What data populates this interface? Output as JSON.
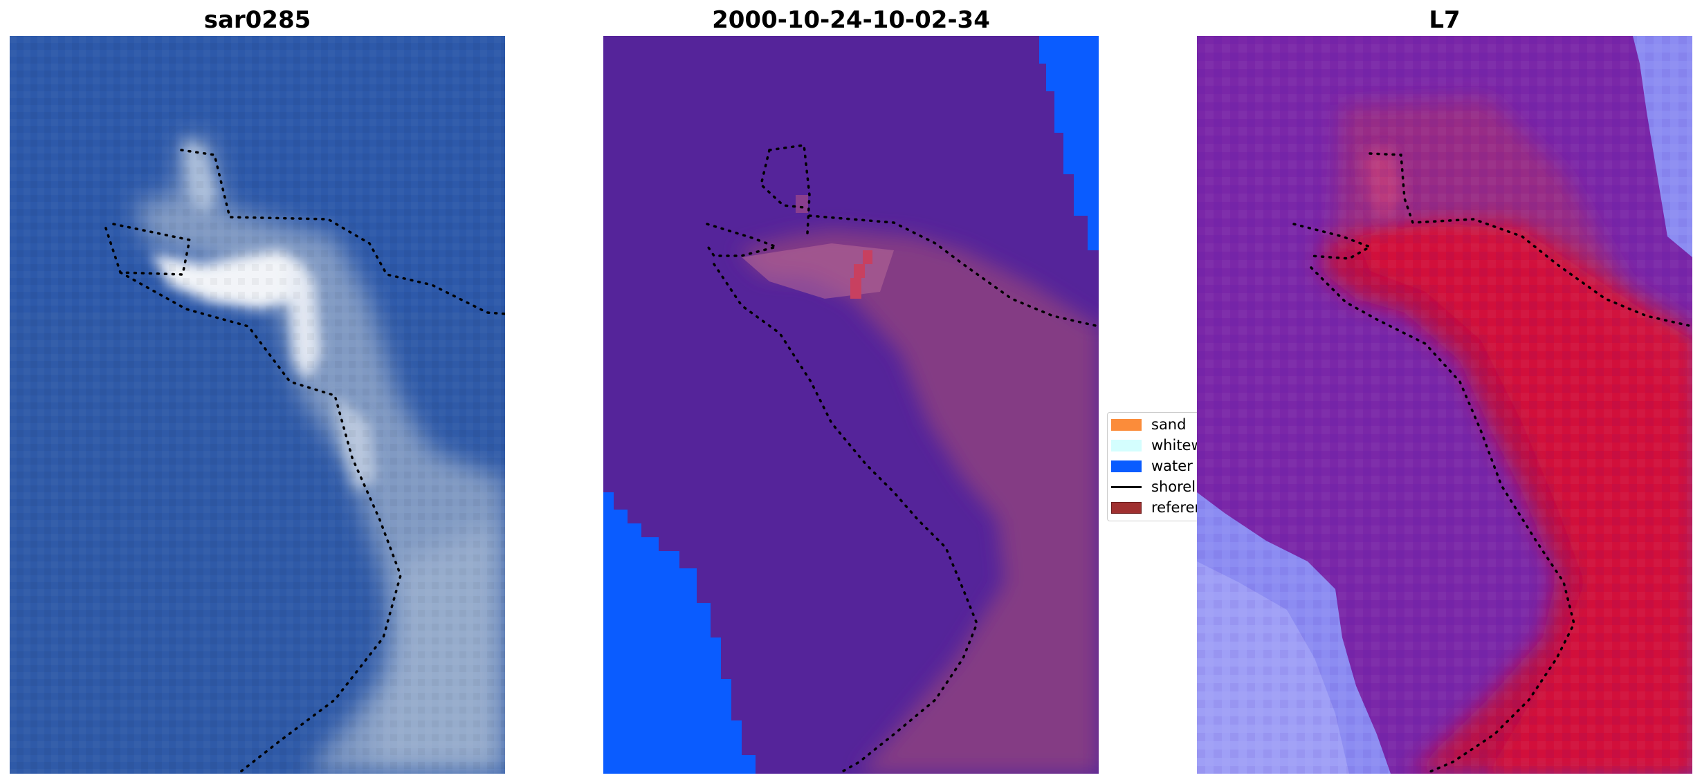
{
  "panels": [
    {
      "title": "sar0285"
    },
    {
      "title": "2000-10-24-10-02-34"
    },
    {
      "title": "L7"
    }
  ],
  "legend": {
    "items": [
      {
        "label": "sand",
        "color": "#fb8c3a"
      },
      {
        "label": "whitewater",
        "color": "#d4fefe"
      },
      {
        "label": "water",
        "color": "#0a5cff"
      },
      {
        "label": "shoreline",
        "color": "#000000"
      },
      {
        "label": "reference shoreline",
        "color": "#a03030"
      }
    ]
  },
  "colors": {
    "panel1_sea": "#2f5aa8",
    "panel1_land": "#8fa6c8",
    "panel1_bright": "#f2f4f8",
    "panel2_land_class": "#55249a",
    "panel2_water_class": "#0a5cff",
    "panel2_overlay": "#8c4080",
    "panel2_highlight": "#c84060",
    "panel3_land": "#7a27a8",
    "panel3_water": "#8c8cf2",
    "panel3_red": "#c2103a"
  }
}
